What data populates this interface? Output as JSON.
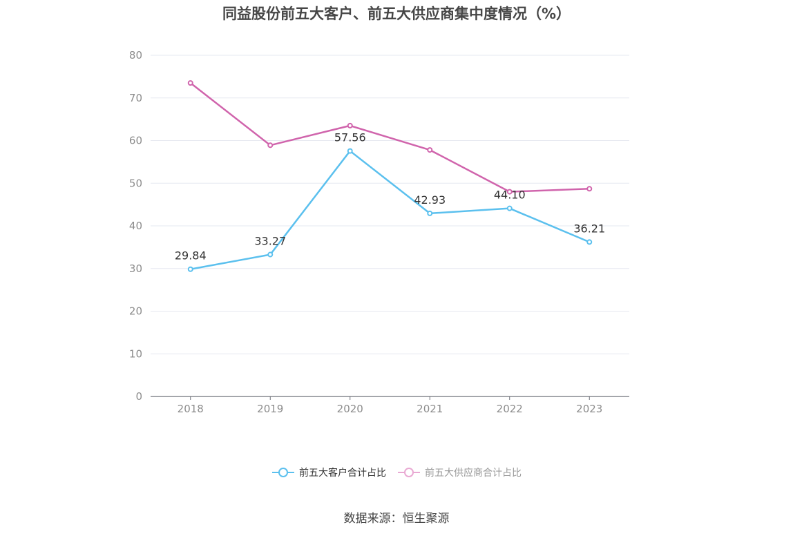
{
  "title": "同益股份前五大客户、前五大供应商集中度情况（%）",
  "source": "数据来源：恒生聚源",
  "chart_data": {
    "type": "line",
    "title": "同益股份前五大客户、前五大供应商集中度情况（%）",
    "categories": [
      "2018",
      "2019",
      "2020",
      "2021",
      "2022",
      "2023"
    ],
    "ylim": [
      0,
      80
    ],
    "yticks": [
      0,
      10,
      20,
      30,
      40,
      50,
      60,
      70,
      80
    ],
    "grid": true,
    "legend_position": "bottom",
    "series": [
      {
        "name": "前五大客户合计占比",
        "color": "#5bc0ee",
        "values": [
          29.84,
          33.27,
          57.56,
          42.93,
          44.1,
          36.21
        ],
        "labels": [
          "29.84",
          "33.27",
          "57.56",
          "42.93",
          "44.10",
          "36.21"
        ]
      },
      {
        "name": "前五大供应商合计占比",
        "color": "#d064ac",
        "legend_color": "#e9a9d3",
        "values": [
          73.5,
          58.9,
          63.5,
          57.8,
          48.0,
          48.7
        ]
      }
    ]
  }
}
